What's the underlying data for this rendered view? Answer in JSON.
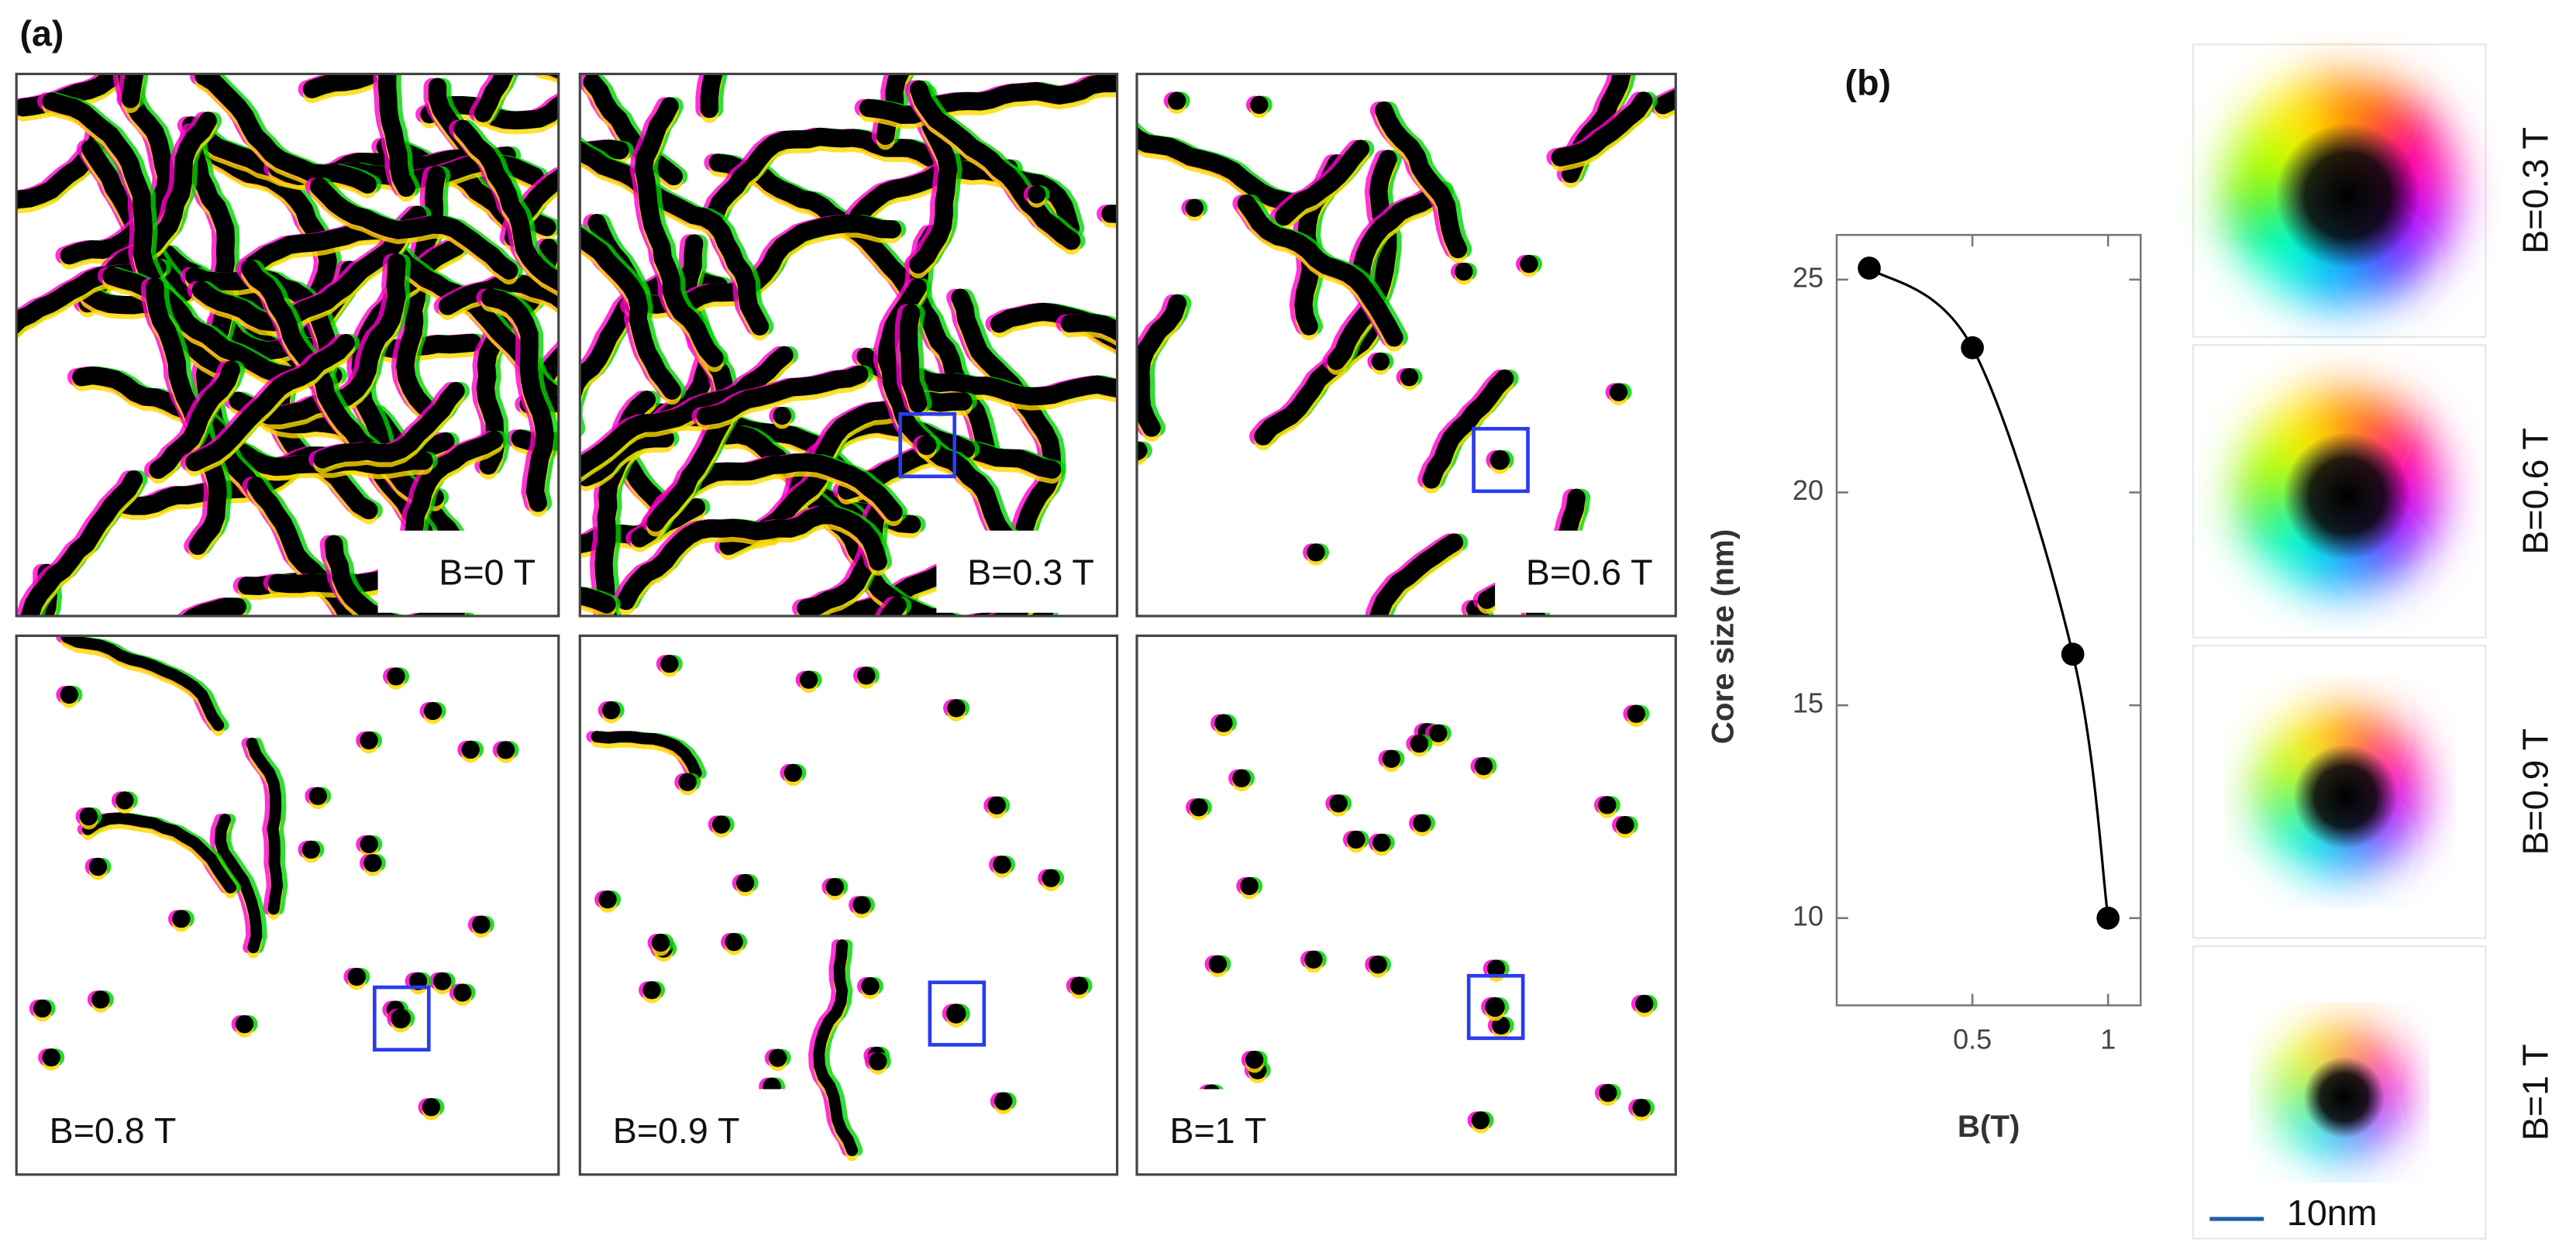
{
  "panel_a": {
    "label": "(a)",
    "fields": [
      "B=0 T",
      "B=0.3 T",
      "B=0.6 T",
      "B=0.8 T",
      "B=0.9 T",
      "B=1 T"
    ]
  },
  "chart_data": {
    "type": "scatter",
    "title": "(b)",
    "x_label": "B(T)",
    "y_label": "Core size (nm)",
    "x": [
      0.12,
      0.5,
      0.87,
      1.0
    ],
    "values": [
      25.27,
      23.4,
      16.2,
      10
    ],
    "color": "#000000",
    "curve": true,
    "xlim": [
      0,
      1.12
    ],
    "ylim": [
      7.95,
      26.05
    ],
    "xticks": [
      0.5,
      1
    ],
    "yticks": [
      10,
      15,
      20,
      25
    ]
  },
  "panel_b_images": {
    "fields": [
      "B=0.3 T",
      "B=0.6 T",
      "B=0.9 T",
      "B=1 T"
    ],
    "scale_bar": "10nm"
  }
}
